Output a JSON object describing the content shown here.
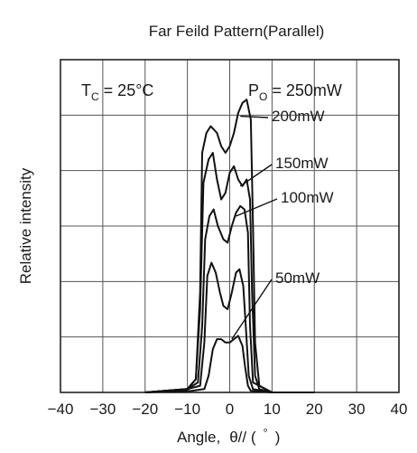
{
  "chart_data": {
    "type": "line",
    "title": "Far Feild Pattern(Parallel)",
    "xlabel_main": "Angle,",
    "xlabel_symbol": "θ// (",
    "xlabel_unit": "°",
    "xlabel_close": ")",
    "ylabel": "Relative intensity",
    "xlim": [
      -40,
      40
    ],
    "ylim": [
      0,
      1
    ],
    "xticks": [
      -40,
      -30,
      -20,
      -10,
      0,
      10,
      20,
      30,
      40
    ],
    "x_tick_labels": [
      "−40",
      "−30",
      "−20",
      "−10",
      "0",
      "10",
      "20",
      "30",
      "40"
    ],
    "grid": true,
    "annotation_tc": {
      "main": "T",
      "sub": "C",
      "rest": "= 25°C"
    },
    "annotation_po": {
      "main": "P",
      "sub": "O",
      "rest": "= 250mW"
    },
    "series": [
      {
        "label": "250mW",
        "points": [
          [
            -20,
            0
          ],
          [
            -10,
            0.01
          ],
          [
            -8,
            0.04
          ],
          [
            -7,
            0.3
          ],
          [
            -6.5,
            0.72
          ],
          [
            -5.5,
            0.78
          ],
          [
            -4.5,
            0.8
          ],
          [
            -3,
            0.78
          ],
          [
            -2,
            0.74
          ],
          [
            -1,
            0.72
          ],
          [
            0,
            0.74
          ],
          [
            1,
            0.78
          ],
          [
            2,
            0.84
          ],
          [
            3,
            0.87
          ],
          [
            4,
            0.88
          ],
          [
            5,
            0.82
          ],
          [
            5.5,
            0.5
          ],
          [
            6,
            0.15
          ],
          [
            7,
            0.02
          ],
          [
            10,
            0
          ],
          [
            20,
            0
          ]
        ]
      },
      {
        "label": "200mW",
        "points": [
          [
            -20,
            0
          ],
          [
            -10,
            0.01
          ],
          [
            -8,
            0.04
          ],
          [
            -7,
            0.25
          ],
          [
            -6.2,
            0.63
          ],
          [
            -5,
            0.7
          ],
          [
            -4,
            0.72
          ],
          [
            -3,
            0.64
          ],
          [
            -2,
            0.58
          ],
          [
            -1,
            0.6
          ],
          [
            0,
            0.66
          ],
          [
            1,
            0.68
          ],
          [
            2,
            0.64
          ],
          [
            3,
            0.62
          ],
          [
            4,
            0.64
          ],
          [
            4.8,
            0.58
          ],
          [
            5.3,
            0.3
          ],
          [
            6,
            0.05
          ],
          [
            7,
            0.01
          ],
          [
            10,
            0
          ],
          [
            20,
            0
          ]
        ]
      },
      {
        "label": "150mW",
        "points": [
          [
            -20,
            0
          ],
          [
            -10,
            0.01
          ],
          [
            -7.5,
            0.03
          ],
          [
            -6.5,
            0.2
          ],
          [
            -5.8,
            0.46
          ],
          [
            -4.8,
            0.53
          ],
          [
            -3.8,
            0.55
          ],
          [
            -2.8,
            0.5
          ],
          [
            -1.5,
            0.46
          ],
          [
            -0.5,
            0.45
          ],
          [
            0.5,
            0.5
          ],
          [
            1.5,
            0.54
          ],
          [
            2.5,
            0.56
          ],
          [
            3.5,
            0.55
          ],
          [
            4.3,
            0.48
          ],
          [
            4.8,
            0.2
          ],
          [
            5.5,
            0.03
          ],
          [
            10,
            0
          ],
          [
            20,
            0
          ]
        ]
      },
      {
        "label": "100mW",
        "points": [
          [
            -20,
            0
          ],
          [
            -10,
            0.01
          ],
          [
            -7,
            0.02
          ],
          [
            -6,
            0.15
          ],
          [
            -5.3,
            0.35
          ],
          [
            -4.3,
            0.39
          ],
          [
            -3.3,
            0.36
          ],
          [
            -2.3,
            0.3
          ],
          [
            -1.5,
            0.26
          ],
          [
            -0.5,
            0.25
          ],
          [
            0.5,
            0.3
          ],
          [
            1.5,
            0.36
          ],
          [
            2.3,
            0.37
          ],
          [
            3.2,
            0.32
          ],
          [
            3.8,
            0.2
          ],
          [
            4.5,
            0.05
          ],
          [
            5.5,
            0.01
          ],
          [
            10,
            0
          ],
          [
            20,
            0
          ]
        ]
      },
      {
        "label": "50mW",
        "points": [
          [
            -20,
            0
          ],
          [
            -9,
            0.005
          ],
          [
            -6,
            0.01
          ],
          [
            -5,
            0.05
          ],
          [
            -4,
            0.13
          ],
          [
            -3,
            0.16
          ],
          [
            -2,
            0.16
          ],
          [
            -1,
            0.15
          ],
          [
            0,
            0.15
          ],
          [
            1,
            0.16
          ],
          [
            2,
            0.17
          ],
          [
            3,
            0.14
          ],
          [
            3.6,
            0.08
          ],
          [
            4.3,
            0.02
          ],
          [
            5,
            0.005
          ],
          [
            10,
            0
          ],
          [
            20,
            0
          ]
        ]
      }
    ],
    "series_labels_shown": [
      "200mW",
      "150mW",
      "100mW",
      "50mW"
    ],
    "colors": {
      "line": "#111111",
      "grid": "#555555"
    }
  }
}
